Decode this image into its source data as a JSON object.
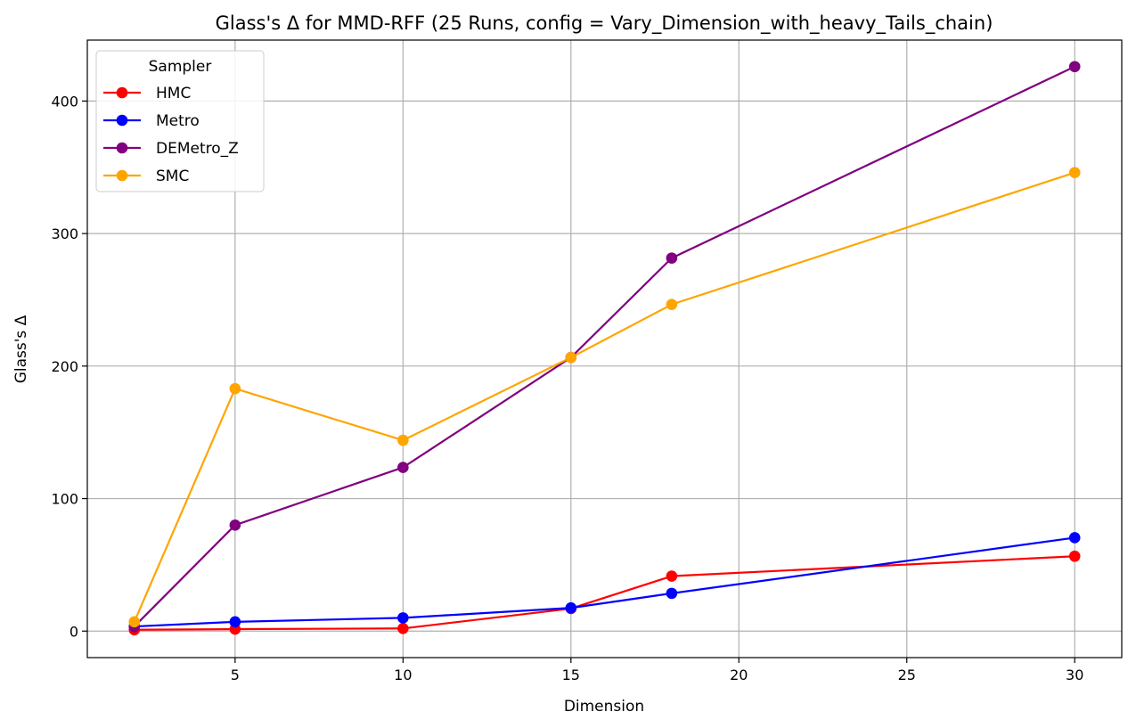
{
  "chart_data": {
    "type": "line",
    "title": "Glass's Δ for MMD-RFF (25 Runs, config = Vary_Dimension_with_heavy_Tails_chain)",
    "xlabel": "Dimension",
    "ylabel": "Glass's Δ",
    "x": [
      2,
      5,
      10,
      15,
      18,
      30
    ],
    "xlim": [
      0.6,
      31.4
    ],
    "ylim": [
      -20,
      446
    ],
    "xticks": [
      5,
      10,
      15,
      20,
      25,
      30
    ],
    "yticks": [
      0,
      100,
      200,
      300,
      400
    ],
    "grid": true,
    "legend": {
      "title": "Sampler",
      "placement": "top-left"
    },
    "series": [
      {
        "name": "HMC",
        "color": "#ff0000",
        "values": [
          1,
          1.5,
          2,
          17,
          41.5,
          56.5
        ]
      },
      {
        "name": "Metro",
        "color": "#0000ff",
        "values": [
          3.5,
          7,
          10,
          17.5,
          28.5,
          70.5
        ]
      },
      {
        "name": "DEMetro_Z",
        "color": "#800080",
        "values": [
          3.5,
          80,
          123.5,
          206.5,
          281.5,
          426
        ]
      },
      {
        "name": "SMC",
        "color": "#ffa500",
        "values": [
          7,
          183,
          144,
          206.5,
          246.5,
          346
        ]
      }
    ]
  }
}
